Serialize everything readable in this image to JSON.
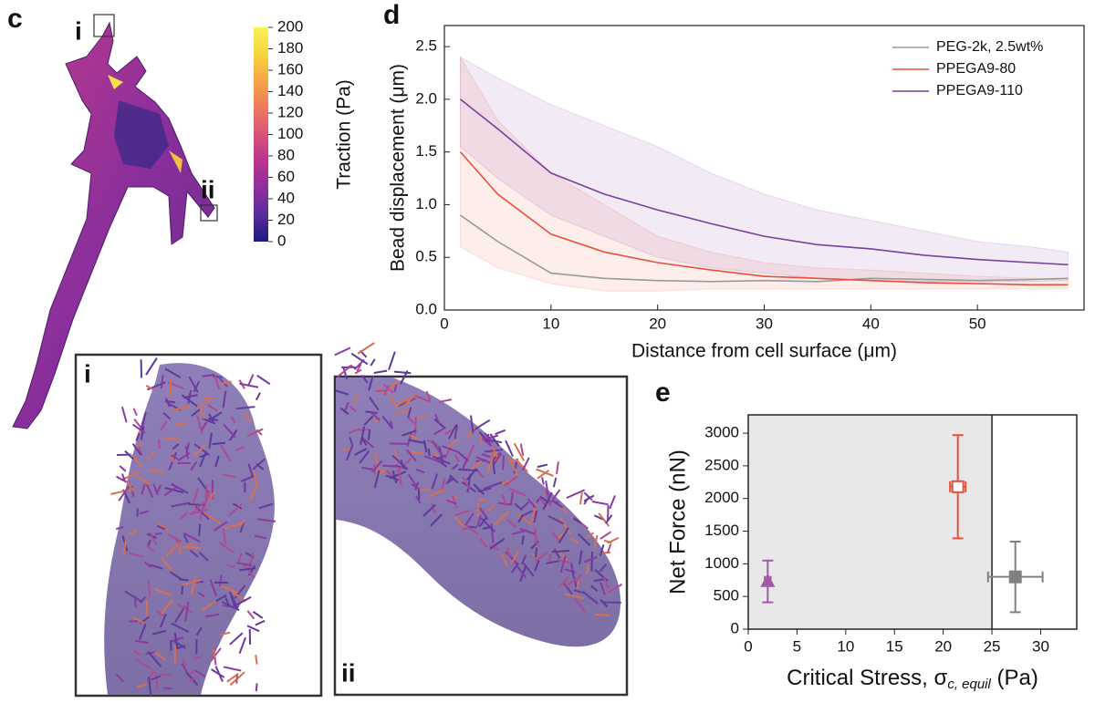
{
  "insets": [
    "i",
    "ii"
  ],
  "chart_data": [
    {
      "type": "colorbar",
      "panel": "c",
      "label": "Traction (Pa)",
      "colors": [
        "#1a1a80",
        "#5b2a9b",
        "#8e2f9e",
        "#b8348f",
        "#d9527a",
        "#ec7a5e",
        "#f5a548",
        "#f6d53c",
        "#f8f25a"
      ],
      "ylim": [
        0,
        200
      ],
      "yticks": [
        0,
        20,
        40,
        60,
        80,
        100,
        120,
        140,
        160,
        180,
        200
      ]
    },
    {
      "type": "line",
      "panel": "d",
      "x_label": "Distance from cell surface (μm)",
      "y_label": "Bead displacement (μm)",
      "xlim": [
        0,
        60
      ],
      "ylim": [
        0,
        2.7
      ],
      "xticks": [
        0,
        10,
        20,
        30,
        40,
        50
      ],
      "yticks": [
        {
          "value": 0,
          "label": "0.0"
        },
        0.5,
        {
          "value": 1,
          "label": "1.0"
        },
        1.5,
        {
          "value": 2,
          "label": "2.0"
        },
        2.5
      ],
      "legend": "upper right",
      "x": [
        1.5,
        5,
        10,
        15,
        20,
        25,
        30,
        35,
        40,
        45,
        50,
        55,
        58.5
      ],
      "series": [
        {
          "name": "PEG-2k, 2.5wt%",
          "color": "#9a9a9a",
          "values": [
            0.9,
            0.65,
            0.35,
            0.3,
            0.28,
            0.27,
            0.28,
            0.27,
            0.3,
            0.29,
            0.28,
            0.29,
            0.3
          ]
        },
        {
          "name": "PPEGA9-80",
          "color": "#e8503c",
          "values": [
            1.5,
            1.1,
            0.72,
            0.55,
            0.45,
            0.38,
            0.32,
            0.3,
            0.28,
            0.26,
            0.25,
            0.24,
            0.24
          ],
          "upper": [
            2.4,
            1.8,
            1.3,
            1.0,
            0.7,
            0.55,
            0.45,
            0.4,
            0.38,
            0.35,
            0.32,
            0.3,
            0.3
          ],
          "lower": [
            0.6,
            0.4,
            0.25,
            0.18,
            0.18,
            0.2,
            0.2,
            0.2,
            0.2,
            0.2,
            0.2,
            0.2,
            0.2
          ]
        },
        {
          "name": "PPEGA9-110",
          "color": "#7b3f9e",
          "values": [
            2.0,
            1.72,
            1.3,
            1.1,
            0.95,
            0.82,
            0.7,
            0.62,
            0.58,
            0.52,
            0.48,
            0.45,
            0.43
          ],
          "upper": [
            2.4,
            2.2,
            1.95,
            1.75,
            1.55,
            1.3,
            1.1,
            0.95,
            0.85,
            0.75,
            0.65,
            0.6,
            0.55
          ],
          "lower": [
            1.55,
            1.25,
            0.9,
            0.7,
            0.5,
            0.4,
            0.35,
            0.3,
            0.28,
            0.27,
            0.27,
            0.27,
            0.28
          ]
        }
      ]
    },
    {
      "type": "scatter",
      "panel": "e",
      "x_label": [
        "Critical Stress, σ",
        "c, equil",
        " (Pa)"
      ],
      "y_label": "Net Force (nN)",
      "xlim": [
        0,
        33.7
      ],
      "ylim": [
        0,
        3280
      ],
      "xticks": [
        0,
        5,
        10,
        15,
        20,
        25,
        30
      ],
      "yticks": [
        0,
        500,
        1000,
        1500,
        2000,
        2500,
        3000
      ],
      "shade_xlim": [
        0,
        25
      ],
      "shade_color": "#e8e8e8",
      "series": [
        {
          "marker": "triangle",
          "color": "#a05aa8",
          "x": 2,
          "xerr": 0.3,
          "y": 730,
          "yerr": 320
        },
        {
          "marker": "open-square",
          "color": "#e8503c",
          "x": 21.5,
          "xerr": 0.8,
          "y": 2180,
          "yerr": 790
        },
        {
          "marker": "square",
          "color": "#808080",
          "x": 27.4,
          "xerr": 2.8,
          "y": 800,
          "yerr": 540
        }
      ]
    }
  ]
}
